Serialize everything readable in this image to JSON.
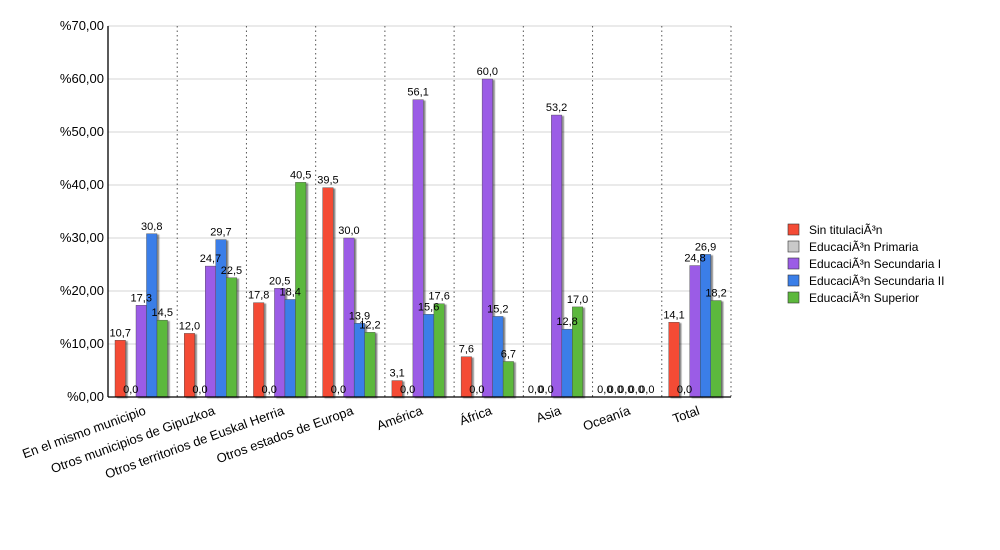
{
  "chart_data": {
    "type": "bar",
    "title": "",
    "xlabel": "",
    "ylabel": "",
    "ylim": [
      0,
      70
    ],
    "y_ticks": [
      "%0,00",
      "%10,00",
      "%20,00",
      "%30,00",
      "%40,00",
      "%50,00",
      "%60,00",
      "%70,00"
    ],
    "grid": "horizontal solid, vertical dotted",
    "legend_position": "right",
    "categories": [
      "En el mismo municipio",
      "Otros municipios de Gipuzkoa",
      "Otros territorios de Euskal Herria",
      "Otros estados de Europa",
      "América",
      "África",
      "Asia",
      "Oceanía",
      "Total"
    ],
    "series": [
      {
        "name": "Sin titulaciÃ³n",
        "color": "#f44b36",
        "values": [
          10.7,
          12.0,
          17.8,
          39.5,
          3.1,
          7.6,
          0.0,
          0.0,
          14.1
        ],
        "labels": [
          "10,7",
          "12,0",
          "17,8",
          "39,5",
          "3,1",
          "7,6",
          "0,0",
          "0,0",
          "14,1"
        ]
      },
      {
        "name": "EducaciÃ³n Primaria",
        "color": "#c9c9c9",
        "values": [
          0.0,
          0.0,
          0.0,
          0.0,
          0.0,
          0.0,
          0.0,
          0.0,
          0.0
        ],
        "labels": [
          "0,0",
          "0,0",
          "0,0",
          "0,0",
          "0,0",
          "0,0",
          "0,0",
          "0,0",
          "0,0"
        ]
      },
      {
        "name": "EducaciÃ³n Secundaria I",
        "color": "#9b5ce6",
        "values": [
          17.3,
          24.7,
          20.5,
          30.0,
          56.1,
          60.0,
          53.2,
          0.0,
          24.8
        ],
        "labels": [
          "17,3",
          "24,7",
          "20,5",
          "30,0",
          "56,1",
          "60,0",
          "53,2",
          "0,0",
          "24,8"
        ]
      },
      {
        "name": "EducaciÃ³n Secundaria II",
        "color": "#3a7ee8",
        "values": [
          30.8,
          29.7,
          18.4,
          13.9,
          15.6,
          15.2,
          12.8,
          0.0,
          26.9
        ],
        "labels": [
          "30,8",
          "29,7",
          "18,4",
          "13,9",
          "15,6",
          "15,2",
          "12,8",
          "0,0",
          "26,9"
        ]
      },
      {
        "name": "EducaciÃ³n Superior",
        "color": "#5cb83c",
        "values": [
          14.5,
          22.5,
          40.5,
          12.2,
          17.6,
          6.7,
          17.0,
          0.0,
          18.2
        ],
        "labels": [
          "14,5",
          "22,5",
          "40,5",
          "12,2",
          "17,6",
          "6,7",
          "17,0",
          "0,0",
          "18,2"
        ]
      }
    ]
  }
}
